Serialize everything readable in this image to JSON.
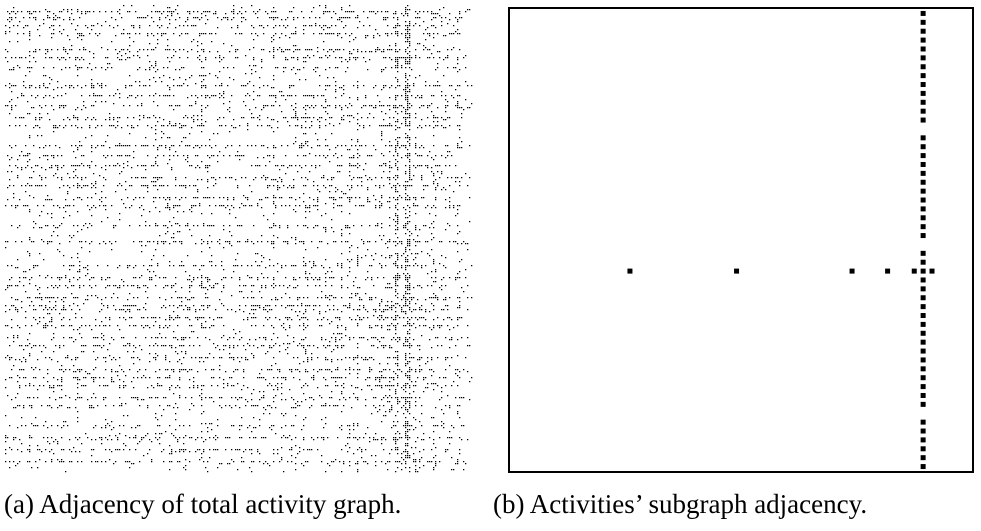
{
  "panels": [
    {
      "id": "a",
      "caption": "(a) Adjacency of total activity graph.",
      "matrix": {
        "kind": "adjacency-matrix-spy-plot",
        "dense_pattern": "sparse scattered black dots with several dense vertical and horizontal bands"
      }
    },
    {
      "id": "b",
      "caption": "(b) Activities’ subgraph adjacency.",
      "matrix": {
        "kind": "adjacency-matrix-spy-plot",
        "size": 52,
        "column_entries": {
          "column": 46,
          "rows": [
            0,
            1,
            2,
            3,
            4,
            5,
            6,
            7,
            8,
            9,
            10,
            11,
            12,
            14,
            15,
            16,
            17,
            18,
            19,
            20,
            21,
            22,
            23,
            24,
            25,
            27,
            28,
            29,
            30,
            31,
            32,
            33,
            34,
            35,
            36,
            37,
            38,
            39,
            40,
            41,
            42,
            43,
            44,
            46,
            47,
            48,
            49,
            50,
            51
          ]
        },
        "row_entries": {
          "row": 29,
          "columns": [
            13,
            25,
            38,
            42,
            45,
            47
          ]
        }
      }
    }
  ]
}
